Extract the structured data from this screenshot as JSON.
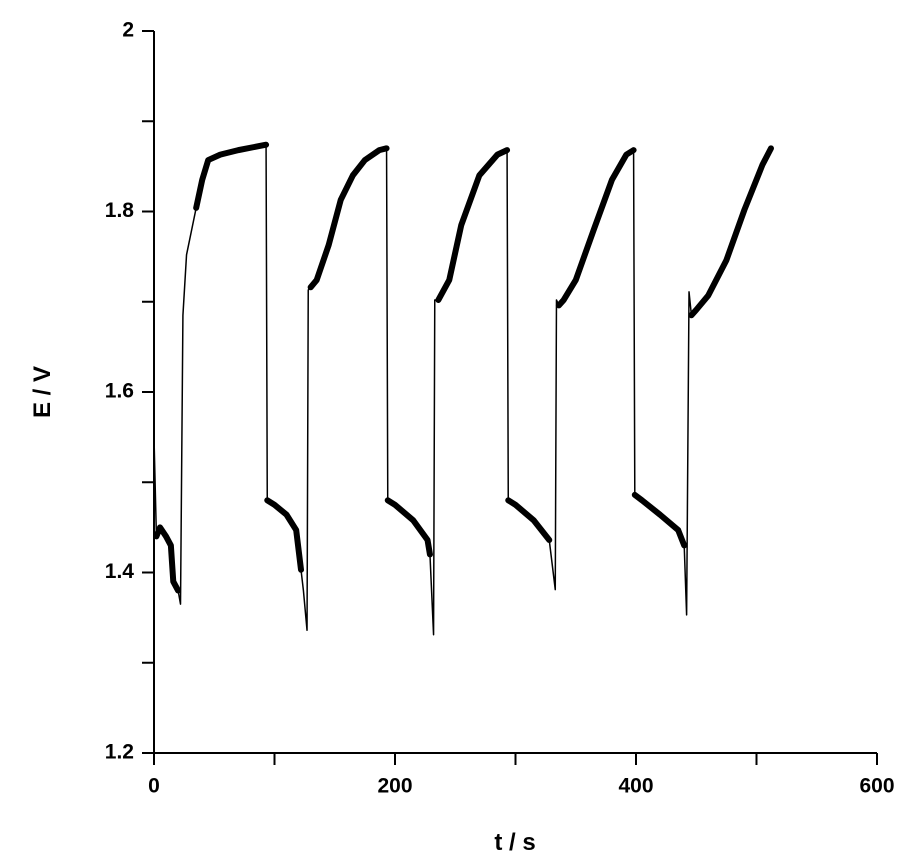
{
  "chart_data": {
    "type": "line",
    "x_label": "t / s",
    "y_label": "E / V",
    "xlim": [
      0,
      600
    ],
    "xticks": [
      0,
      200,
      400,
      600
    ],
    "xticks_minor": [
      100,
      300,
      500
    ],
    "ylim": [
      1.2,
      2
    ],
    "yticks": [
      1.2,
      1.4,
      1.6,
      1.8,
      2
    ],
    "yticks_minor": [
      1.3,
      1.5,
      1.7,
      1.9
    ],
    "grid": false,
    "series": [
      {
        "color": "#000000",
        "line_width": 1.5,
        "x": [
          0,
          2,
          5,
          10,
          14,
          16,
          20,
          22,
          24,
          27,
          35,
          40,
          45,
          55,
          70,
          93,
          94,
          100,
          110,
          118,
          122,
          124,
          127,
          128,
          130,
          135,
          145,
          155,
          165,
          175,
          187,
          193,
          194,
          200,
          215,
          227,
          229,
          232,
          233,
          236,
          245,
          255,
          270,
          285,
          293,
          294,
          300,
          315,
          328,
          333,
          334,
          336,
          340,
          350,
          365,
          380,
          392,
          398,
          399,
          405,
          420,
          435,
          440,
          442,
          444,
          446,
          450,
          460,
          475,
          490,
          505,
          512
        ],
        "values": [
          1.55,
          1.44,
          1.45,
          1.44,
          1.43,
          1.39,
          1.38,
          1.365,
          1.685,
          1.752,
          1.804,
          1.835,
          1.857,
          1.863,
          1.868,
          1.874,
          1.48,
          1.475,
          1.464,
          1.447,
          1.403,
          1.38,
          1.336,
          1.713,
          1.716,
          1.724,
          1.763,
          1.813,
          1.84,
          1.857,
          1.868,
          1.87,
          1.48,
          1.475,
          1.458,
          1.436,
          1.42,
          1.331,
          1.702,
          1.702,
          1.724,
          1.785,
          1.84,
          1.863,
          1.868,
          1.48,
          1.475,
          1.458,
          1.436,
          1.381,
          1.702,
          1.696,
          1.702,
          1.724,
          1.78,
          1.835,
          1.863,
          1.868,
          1.486,
          1.48,
          1.464,
          1.447,
          1.43,
          1.353,
          1.711,
          1.685,
          1.691,
          1.707,
          1.746,
          1.802,
          1.852,
          1.87
        ]
      },
      {
        "color": "#000000",
        "line_width": 6,
        "x": [
          2,
          5,
          10,
          14,
          16,
          20
        ],
        "values": [
          1.44,
          1.45,
          1.44,
          1.43,
          1.39,
          1.38
        ]
      },
      {
        "color": "#000000",
        "line_width": 6,
        "x": [
          35,
          40,
          45,
          55,
          70,
          93
        ],
        "values": [
          1.804,
          1.835,
          1.857,
          1.863,
          1.868,
          1.874
        ]
      },
      {
        "color": "#000000",
        "line_width": 6,
        "x": [
          94,
          100,
          110,
          118,
          122
        ],
        "values": [
          1.48,
          1.475,
          1.464,
          1.447,
          1.403
        ]
      },
      {
        "color": "#000000",
        "line_width": 6,
        "x": [
          130,
          135,
          145,
          155,
          165,
          175,
          187,
          193
        ],
        "values": [
          1.716,
          1.724,
          1.763,
          1.813,
          1.84,
          1.857,
          1.868,
          1.87
        ]
      },
      {
        "color": "#000000",
        "line_width": 6,
        "x": [
          194,
          200,
          215,
          227,
          229
        ],
        "values": [
          1.48,
          1.475,
          1.458,
          1.436,
          1.42
        ]
      },
      {
        "color": "#000000",
        "line_width": 6,
        "x": [
          236,
          245,
          255,
          270,
          285,
          293
        ],
        "values": [
          1.702,
          1.724,
          1.785,
          1.84,
          1.863,
          1.868
        ]
      },
      {
        "color": "#000000",
        "line_width": 6,
        "x": [
          294,
          300,
          315,
          328
        ],
        "values": [
          1.48,
          1.475,
          1.458,
          1.436
        ]
      },
      {
        "color": "#000000",
        "line_width": 6,
        "x": [
          336,
          340,
          350,
          365,
          380,
          392,
          398
        ],
        "values": [
          1.696,
          1.702,
          1.724,
          1.78,
          1.835,
          1.863,
          1.868
        ]
      },
      {
        "color": "#000000",
        "line_width": 6,
        "x": [
          399,
          405,
          420,
          435,
          440
        ],
        "values": [
          1.486,
          1.48,
          1.464,
          1.447,
          1.43
        ]
      },
      {
        "color": "#000000",
        "line_width": 6,
        "x": [
          446,
          450,
          460,
          475,
          490,
          505,
          512
        ],
        "values": [
          1.685,
          1.691,
          1.707,
          1.746,
          1.802,
          1.852,
          1.87
        ]
      }
    ]
  }
}
